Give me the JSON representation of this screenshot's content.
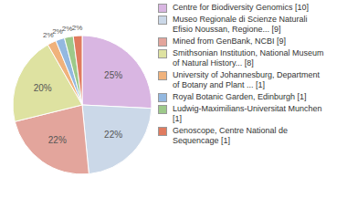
{
  "chart_data": {
    "type": "pie",
    "categories": [
      "Centre for Biodiversity Genomics [10]",
      "Museo Regionale di Scienze Naturali Efisio Noussan, Regione... [9]",
      "Mined from GenBank, NCBI [9]",
      "Smithsonian Institution, National Museum of Natural History... [8]",
      "University of Johannesburg, Department of Botany and Plant ... [1]",
      "Royal Botanic Garden, Edinburgh [1]",
      "Ludwig-Maximilians-Universitat Munchen [1]",
      "Genoscope, Centre National de Sequencage [1]"
    ],
    "values": [
      25,
      22,
      22,
      20,
      2,
      2,
      2,
      2
    ],
    "value_labels": [
      "25%",
      "22%",
      "22%",
      "20%",
      "2%",
      "2%",
      "2%",
      "2%"
    ],
    "data_labels": true,
    "legend": "right",
    "colors": [
      "#d9b6e2",
      "#cbd8e8",
      "#e3a59c",
      "#dee2a1",
      "#f0b27c",
      "#93b8e0",
      "#9dc98a",
      "#e07b5f"
    ]
  }
}
